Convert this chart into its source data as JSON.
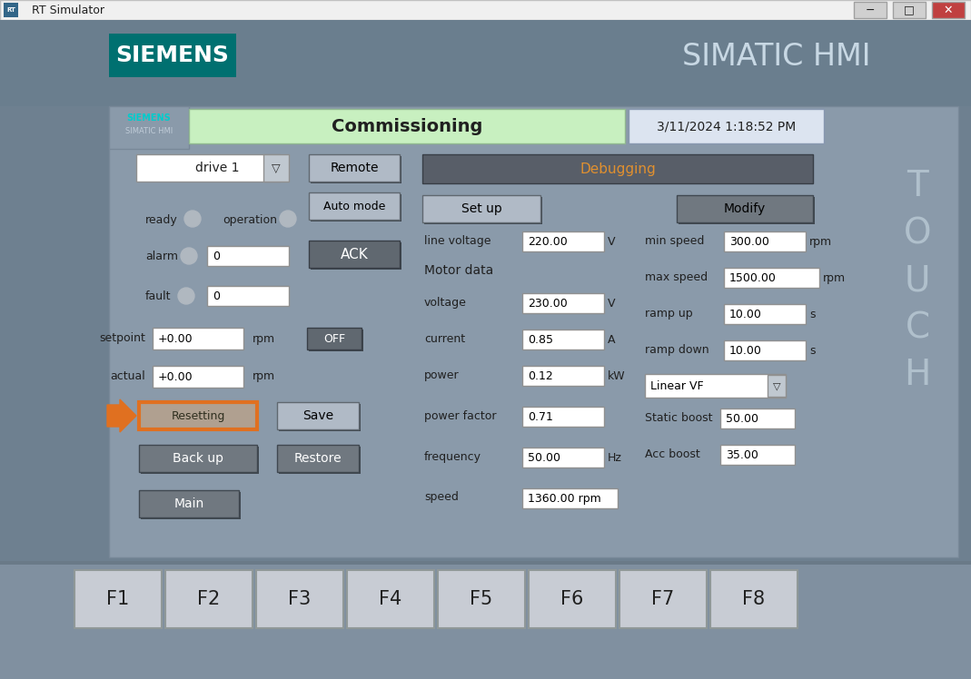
{
  "window_title": "RT Simulator",
  "window_bg": "#e8e8e8",
  "title_bar_bg": "#f0f0f0",
  "hmi_outer_bg": "#6e8090",
  "hmi_inner_bg": "#8a9aaa",
  "panel_bg": "#8a9aaa",
  "siemens_logo": "SIEMENS",
  "simatic_hmi": "SIMATIC HMI",
  "siemens_logo_bg": "#007070",
  "siemens_logo_color": "#ffffff",
  "siemens_small": "SIEMENS",
  "simatic_small": "SIMATIC HMI",
  "commissioning_text": "Commissioning",
  "commissioning_bg": "#c8f0c0",
  "datetime_text": "3/11/2024 1:18:52 PM",
  "datetime_bg": "#dce4f0",
  "touch_text": "TOUCH",
  "touch_color": "#b0c0cc",
  "drive_label": "drive 1",
  "drive_bg": "#ffffff",
  "remote_btn": "Remote",
  "auto_mode_btn": "Auto mode",
  "ack_btn": "ACK",
  "ack_bg": "#606870",
  "ready_label": "ready",
  "operation_label": "operation",
  "indicator_bg": "#c0c8d0",
  "alarm_label": "alarm",
  "alarm_value": "0",
  "fault_label": "fault",
  "fault_value": "0",
  "setpoint_label": "setpoint",
  "setpoint_value": "+0.00",
  "setpoint_unit": "rpm",
  "actual_label": "actual",
  "actual_value": "+0.00",
  "actual_unit": "rpm",
  "off_btn": "OFF",
  "off_bg": "#606870",
  "resetting_btn": "Resetting",
  "resetting_bg": "#b0a090",
  "save_btn": "Save",
  "backup_btn": "Back up",
  "restore_btn": "Restore",
  "main_btn": "Main",
  "btn_bg": "#707880",
  "btn_text": "#ffffff",
  "debugging_btn": "Debugging",
  "debugging_bg": "#585e68",
  "debugging_text": "#e09030",
  "setup_btn": "Set up",
  "setup_bg": "#b0bac6",
  "modify_btn": "Modify",
  "modify_bg": "#707880",
  "line_voltage_label": "line voltage",
  "line_voltage_value": "220.00",
  "line_voltage_unit": "V",
  "motor_data_label": "Motor data",
  "voltage_label": "voltage",
  "voltage_value": "230.00",
  "voltage_unit": "V",
  "current_label": "current",
  "current_value": "0.85",
  "current_unit": "A",
  "power_label": "power",
  "power_value": "0.12",
  "power_unit": "kW",
  "power_factor_label": "power factor",
  "power_factor_value": "0.71",
  "frequency_label": "frequency",
  "frequency_value": "50.00",
  "frequency_unit": "Hz",
  "speed_label": "speed",
  "speed_value": "1360.00",
  "speed_unit": "rpm",
  "min_speed_label": "min speed",
  "min_speed_value": "300.00",
  "min_speed_unit": "rpm",
  "max_speed_label": "max speed",
  "max_speed_value": "1500.00",
  "max_speed_unit": "rpm",
  "ramp_up_label": "ramp up",
  "ramp_up_value": "10.00",
  "ramp_up_unit": "s",
  "ramp_down_label": "ramp down",
  "ramp_down_value": "10.00",
  "ramp_down_unit": "s",
  "linear_vf_label": "Linear VF",
  "static_boost_label": "Static boost",
  "static_boost_value": "50.00",
  "acc_boost_label": "Acc boost",
  "acc_boost_value": "35.00",
  "input_bg": "#ffffff",
  "input_ec": "#909090",
  "f_keys": [
    "F1",
    "F2",
    "F3",
    "F4",
    "F5",
    "F6",
    "F7",
    "F8"
  ],
  "fkey_bg": "#c8ccd4",
  "fkey_ec": "#909898",
  "fbar_bg": "#8090a0",
  "arrow_color": "#e07020",
  "resetting_border": "#e07020"
}
